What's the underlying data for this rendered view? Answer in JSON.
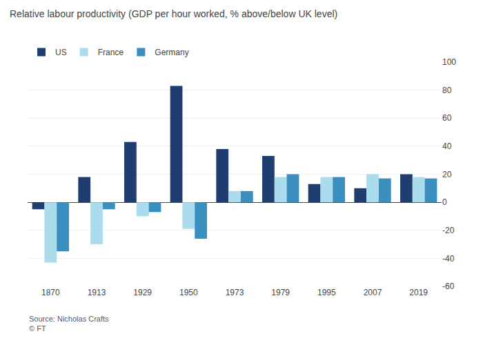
{
  "chart_data": {
    "type": "bar",
    "title": "Relative labour productivity (GDP per hour worked, % above/below UK level)",
    "categories": [
      "1870",
      "1913",
      "1929",
      "1950",
      "1973",
      "1979",
      "1995",
      "2007",
      "2019"
    ],
    "series": [
      {
        "name": "US",
        "color": "#1f3d6e",
        "values": [
          -5,
          18,
          43,
          83,
          38,
          33,
          13,
          10,
          20
        ]
      },
      {
        "name": "France",
        "color": "#aadcee",
        "values": [
          -43,
          -30,
          -10,
          -19,
          8,
          18,
          18,
          20,
          18
        ]
      },
      {
        "name": "Germany",
        "color": "#3a8fbf",
        "values": [
          -35,
          -5,
          -7,
          -26,
          8,
          20,
          18,
          17,
          17
        ]
      }
    ],
    "ylim": [
      -60,
      100
    ],
    "yticks": [
      -60,
      -40,
      -20,
      0,
      20,
      40,
      60,
      80,
      100
    ],
    "grid": true,
    "legend": "upper left",
    "annotations": [
      "Source: Nicholas Crafts\n© FT"
    ]
  }
}
